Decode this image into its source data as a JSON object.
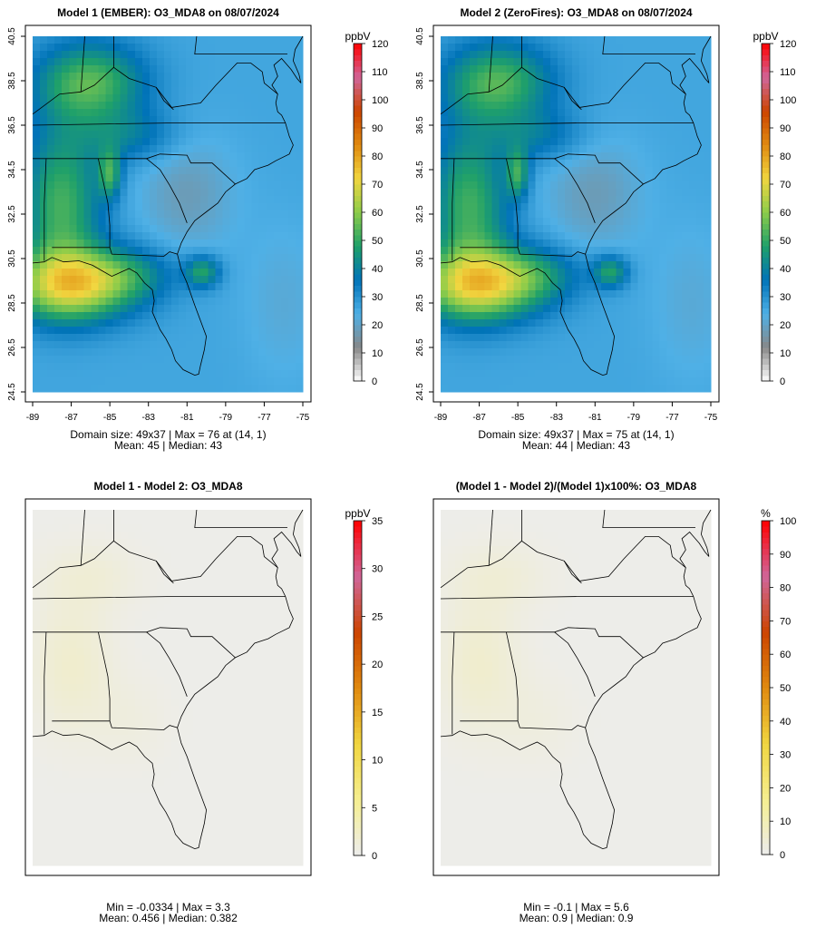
{
  "panels": [
    {
      "title": "Model 1 (EMBER): O3_MDA8 on 08/07/2024",
      "stats_line1": "Domain size: 49x37 | Max = 76 at (14, 1)",
      "stats_line2": "Mean: 45 |  Median: 43",
      "x_ticks": [
        "-89",
        "-87",
        "-85",
        "-83",
        "-81",
        "-79",
        "-77",
        "-75"
      ],
      "y_ticks": [
        "24.5",
        "26.5",
        "28.5",
        "30.5",
        "32.5",
        "34.5",
        "36.5",
        "38.5",
        "40.5"
      ],
      "field": "model1",
      "colorbar": {
        "unit": "ppbV",
        "ticks": [
          "0",
          "10",
          "20",
          "30",
          "40",
          "50",
          "60",
          "70",
          "80",
          "90",
          "100",
          "110",
          "120"
        ],
        "max": 120,
        "palette": "full"
      }
    },
    {
      "title": "Model 2 (ZeroFires): O3_MDA8 on 08/07/2024",
      "stats_line1": "Domain size: 49x37 | Max = 75 at (14, 1)",
      "stats_line2": "Mean: 44 |  Median: 43",
      "x_ticks": [
        "-89",
        "-87",
        "-85",
        "-83",
        "-81",
        "-79",
        "-77",
        "-75"
      ],
      "y_ticks": [
        "24.5",
        "26.5",
        "28.5",
        "30.5",
        "32.5",
        "34.5",
        "36.5",
        "38.5",
        "40.5"
      ],
      "field": "model2",
      "colorbar": {
        "unit": "ppbV",
        "ticks": [
          "0",
          "10",
          "20",
          "30",
          "40",
          "50",
          "60",
          "70",
          "80",
          "90",
          "100",
          "110",
          "120"
        ],
        "max": 120,
        "palette": "full"
      }
    },
    {
      "title": "Model 1 - Model 2: O3_MDA8",
      "stats_line1": "Min = -0.0334 | Max = 3.3",
      "stats_line2": "Mean: 0.456 |  Median: 0.382",
      "x_ticks": [],
      "y_ticks": [],
      "field": "diff",
      "colorbar": {
        "unit": "ppbV",
        "ticks": [
          "0",
          "5",
          "10",
          "15",
          "20",
          "25",
          "30",
          "35"
        ],
        "max": 35,
        "palette": "warm"
      }
    },
    {
      "title": "(Model 1 - Model 2)/(Model 1)x100%: O3_MDA8",
      "stats_line1": "Min = -0.1 | Max = 5.6",
      "stats_line2": "Mean: 0.9 |  Median: 0.9",
      "x_ticks": [],
      "y_ticks": [],
      "field": "pct",
      "colorbar": {
        "unit": "%",
        "ticks": [
          "0",
          "10",
          "20",
          "30",
          "40",
          "50",
          "60",
          "70",
          "80",
          "90",
          "100"
        ],
        "max": 100,
        "palette": "warm"
      }
    }
  ],
  "colors": {
    "full": [
      "#ffffff",
      "#888888",
      "#4fb0e6",
      "#0073b8",
      "#1fa06a",
      "#8ccc4a",
      "#f1d640",
      "#e08a10",
      "#cc4400",
      "#d0669a",
      "#ff0000"
    ],
    "warm": [
      "#ededed",
      "#f5ee90",
      "#f1d640",
      "#e08a10",
      "#cc4400",
      "#d0669a",
      "#ff0000"
    ]
  }
}
